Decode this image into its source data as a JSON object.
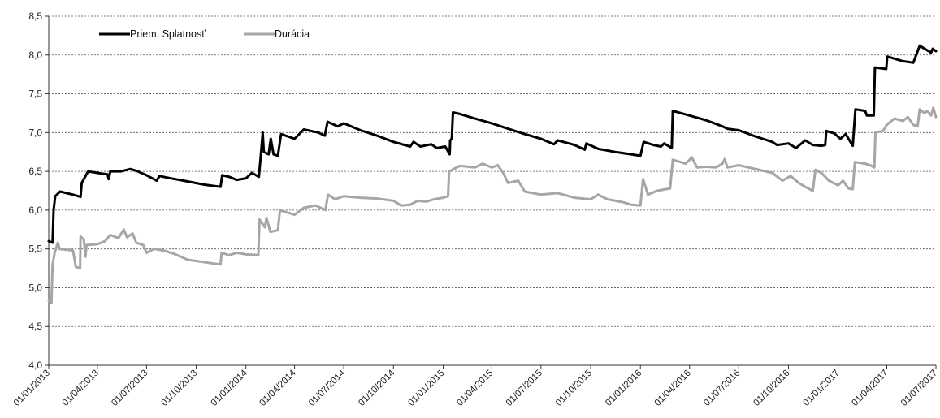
{
  "chart_data": {
    "type": "line",
    "title": "",
    "xlabel": "",
    "ylabel": "",
    "ylim": [
      4.0,
      8.5
    ],
    "y_ticks": [
      "4,0",
      "4,5",
      "5,0",
      "5,5",
      "6,0",
      "6,5",
      "7,0",
      "7,5",
      "8,0",
      "8,5"
    ],
    "x_ticks": [
      "01/01/2013",
      "01/04/2013",
      "01/07/2013",
      "01/10/2013",
      "01/01/2014",
      "01/04/2014",
      "01/07/2014",
      "01/10/2014",
      "01/01/2015",
      "01/04/2015",
      "01/07/2015",
      "01/10/2015",
      "01/01/2016",
      "01/04/2016",
      "01/07/2016",
      "01/10/2016",
      "01/01/2017",
      "01/04/2017",
      "01/07/2017"
    ],
    "xlim": [
      "2013-01-01",
      "2017-07-01"
    ],
    "grid": "horizontal dashed",
    "legend": "top-left",
    "series": [
      {
        "name": "Priem. Splatnosť",
        "color": "#000000",
        "points": [
          [
            "2013-01-01",
            5.6
          ],
          [
            "2013-01-08",
            5.58
          ],
          [
            "2013-01-10",
            6.0
          ],
          [
            "2013-01-13",
            6.18
          ],
          [
            "2013-01-22",
            6.24
          ],
          [
            "2013-02-15",
            6.2
          ],
          [
            "2013-03-01",
            6.17
          ],
          [
            "2013-03-03",
            6.35
          ],
          [
            "2013-03-15",
            6.5
          ],
          [
            "2013-04-01",
            6.48
          ],
          [
            "2013-04-20",
            6.46
          ],
          [
            "2013-04-22",
            6.4
          ],
          [
            "2013-04-25",
            6.5
          ],
          [
            "2013-05-15",
            6.5
          ],
          [
            "2013-06-01",
            6.53
          ],
          [
            "2013-06-15",
            6.5
          ],
          [
            "2013-07-01",
            6.45
          ],
          [
            "2013-07-20",
            6.38
          ],
          [
            "2013-07-25",
            6.44
          ],
          [
            "2013-08-15",
            6.41
          ],
          [
            "2013-09-15",
            6.37
          ],
          [
            "2013-10-15",
            6.33
          ],
          [
            "2013-11-15",
            6.3
          ],
          [
            "2013-11-18",
            6.45
          ],
          [
            "2013-12-01",
            6.43
          ],
          [
            "2013-12-15",
            6.39
          ],
          [
            "2014-01-01",
            6.41
          ],
          [
            "2014-01-12",
            6.48
          ],
          [
            "2014-01-25",
            6.43
          ],
          [
            "2014-01-29",
            6.75
          ],
          [
            "2014-02-01",
            7.0
          ],
          [
            "2014-02-03",
            6.75
          ],
          [
            "2014-02-12",
            6.72
          ],
          [
            "2014-02-16",
            6.92
          ],
          [
            "2014-02-21",
            6.72
          ],
          [
            "2014-03-01",
            6.7
          ],
          [
            "2014-03-07",
            6.98
          ],
          [
            "2014-04-01",
            6.92
          ],
          [
            "2014-04-18",
            7.04
          ],
          [
            "2014-05-15",
            7.0
          ],
          [
            "2014-05-27",
            6.96
          ],
          [
            "2014-06-01",
            7.14
          ],
          [
            "2014-06-20",
            7.08
          ],
          [
            "2014-07-01",
            7.12
          ],
          [
            "2014-08-01",
            7.03
          ],
          [
            "2014-09-01",
            6.96
          ],
          [
            "2014-10-01",
            6.88
          ],
          [
            "2014-11-01",
            6.82
          ],
          [
            "2014-11-07",
            6.88
          ],
          [
            "2014-11-20",
            6.82
          ],
          [
            "2014-12-10",
            6.85
          ],
          [
            "2014-12-20",
            6.8
          ],
          [
            "2015-01-05",
            6.82
          ],
          [
            "2015-01-13",
            6.72
          ],
          [
            "2015-01-14",
            6.9
          ],
          [
            "2015-01-17",
            6.92
          ],
          [
            "2015-01-19",
            7.26
          ],
          [
            "2015-02-01",
            7.24
          ],
          [
            "2015-03-01",
            7.18
          ],
          [
            "2015-04-01",
            7.12
          ],
          [
            "2015-05-01",
            7.05
          ],
          [
            "2015-06-01",
            6.98
          ],
          [
            "2015-07-01",
            6.92
          ],
          [
            "2015-07-25",
            6.85
          ],
          [
            "2015-08-01",
            6.9
          ],
          [
            "2015-09-01",
            6.84
          ],
          [
            "2015-09-20",
            6.78
          ],
          [
            "2015-09-23",
            6.86
          ],
          [
            "2015-10-15",
            6.79
          ],
          [
            "2015-11-15",
            6.75
          ],
          [
            "2015-12-15",
            6.72
          ],
          [
            "2016-01-01",
            6.7
          ],
          [
            "2016-01-07",
            6.88
          ],
          [
            "2016-01-25",
            6.84
          ],
          [
            "2016-02-08",
            6.82
          ],
          [
            "2016-02-14",
            6.86
          ],
          [
            "2016-02-28",
            6.8
          ],
          [
            "2016-03-01",
            7.28
          ],
          [
            "2016-04-01",
            7.22
          ],
          [
            "2016-05-01",
            7.16
          ],
          [
            "2016-06-01",
            7.08
          ],
          [
            "2016-06-10",
            7.05
          ],
          [
            "2016-07-01",
            7.03
          ],
          [
            "2016-08-01",
            6.95
          ],
          [
            "2016-09-01",
            6.88
          ],
          [
            "2016-09-10",
            6.84
          ],
          [
            "2016-10-01",
            6.86
          ],
          [
            "2016-10-15",
            6.8
          ],
          [
            "2016-11-01",
            6.9
          ],
          [
            "2016-11-15",
            6.84
          ],
          [
            "2016-12-01",
            6.83
          ],
          [
            "2016-12-08",
            6.84
          ],
          [
            "2016-12-10",
            7.02
          ],
          [
            "2016-12-25",
            6.99
          ],
          [
            "2017-01-05",
            6.92
          ],
          [
            "2017-01-15",
            6.98
          ],
          [
            "2017-01-28",
            6.83
          ],
          [
            "2017-02-02",
            7.3
          ],
          [
            "2017-02-20",
            7.28
          ],
          [
            "2017-02-23",
            7.22
          ],
          [
            "2017-03-08",
            7.22
          ],
          [
            "2017-03-10",
            7.84
          ],
          [
            "2017-03-31",
            7.82
          ],
          [
            "2017-04-02",
            7.98
          ],
          [
            "2017-05-01",
            7.92
          ],
          [
            "2017-05-20",
            7.9
          ],
          [
            "2017-06-01",
            8.12
          ],
          [
            "2017-06-22",
            8.03
          ],
          [
            "2017-06-25",
            8.08
          ],
          [
            "2017-07-01",
            8.05
          ]
        ]
      },
      {
        "name": "Durácia",
        "color": "#a6a6a6",
        "points": [
          [
            "2013-01-01",
            4.83
          ],
          [
            "2013-01-06",
            4.8
          ],
          [
            "2013-01-08",
            5.3
          ],
          [
            "2013-01-12",
            5.45
          ],
          [
            "2013-01-18",
            5.58
          ],
          [
            "2013-01-21",
            5.5
          ],
          [
            "2013-02-15",
            5.48
          ],
          [
            "2013-02-20",
            5.27
          ],
          [
            "2013-02-28",
            5.25
          ],
          [
            "2013-03-01",
            5.66
          ],
          [
            "2013-03-07",
            5.62
          ],
          [
            "2013-03-10",
            5.4
          ],
          [
            "2013-03-12",
            5.55
          ],
          [
            "2013-04-01",
            5.56
          ],
          [
            "2013-04-15",
            5.6
          ],
          [
            "2013-04-25",
            5.68
          ],
          [
            "2013-05-10",
            5.64
          ],
          [
            "2013-05-20",
            5.75
          ],
          [
            "2013-05-26",
            5.65
          ],
          [
            "2013-06-05",
            5.7
          ],
          [
            "2013-06-12",
            5.58
          ],
          [
            "2013-06-25",
            5.55
          ],
          [
            "2013-07-01",
            5.45
          ],
          [
            "2013-07-15",
            5.5
          ],
          [
            "2013-08-01",
            5.48
          ],
          [
            "2013-08-20",
            5.44
          ],
          [
            "2013-09-15",
            5.36
          ],
          [
            "2013-10-15",
            5.33
          ],
          [
            "2013-11-15",
            5.3
          ],
          [
            "2013-11-17",
            5.45
          ],
          [
            "2013-12-01",
            5.42
          ],
          [
            "2013-12-15",
            5.45
          ],
          [
            "2014-01-01",
            5.43
          ],
          [
            "2014-01-24",
            5.42
          ],
          [
            "2014-01-26",
            5.88
          ],
          [
            "2014-02-05",
            5.78
          ],
          [
            "2014-02-08",
            5.9
          ],
          [
            "2014-02-15",
            5.72
          ],
          [
            "2014-03-01",
            5.74
          ],
          [
            "2014-03-05",
            6.0
          ],
          [
            "2014-04-01",
            5.94
          ],
          [
            "2014-04-18",
            6.03
          ],
          [
            "2014-05-10",
            6.06
          ],
          [
            "2014-05-28",
            6.0
          ],
          [
            "2014-06-02",
            6.2
          ],
          [
            "2014-06-15",
            6.14
          ],
          [
            "2014-07-01",
            6.18
          ],
          [
            "2014-08-01",
            6.16
          ],
          [
            "2014-09-01",
            6.15
          ],
          [
            "2014-10-01",
            6.12
          ],
          [
            "2014-10-15",
            6.06
          ],
          [
            "2014-11-01",
            6.07
          ],
          [
            "2014-11-15",
            6.12
          ],
          [
            "2014-12-01",
            6.11
          ],
          [
            "2014-12-15",
            6.14
          ],
          [
            "2015-01-01",
            6.16
          ],
          [
            "2015-01-10",
            6.18
          ],
          [
            "2015-01-12",
            6.5
          ],
          [
            "2015-02-01",
            6.57
          ],
          [
            "2015-03-01",
            6.55
          ],
          [
            "2015-03-15",
            6.6
          ],
          [
            "2015-04-01",
            6.55
          ],
          [
            "2015-04-12",
            6.58
          ],
          [
            "2015-04-22",
            6.48
          ],
          [
            "2015-05-01",
            6.35
          ],
          [
            "2015-05-20",
            6.38
          ],
          [
            "2015-06-01",
            6.24
          ],
          [
            "2015-07-01",
            6.2
          ],
          [
            "2015-08-01",
            6.22
          ],
          [
            "2015-09-01",
            6.16
          ],
          [
            "2015-10-01",
            6.14
          ],
          [
            "2015-10-15",
            6.2
          ],
          [
            "2015-11-01",
            6.14
          ],
          [
            "2015-12-01",
            6.1
          ],
          [
            "2015-12-15",
            6.07
          ],
          [
            "2016-01-01",
            6.06
          ],
          [
            "2016-01-06",
            6.4
          ],
          [
            "2016-01-15",
            6.2
          ],
          [
            "2016-02-01",
            6.25
          ],
          [
            "2016-02-25",
            6.28
          ],
          [
            "2016-03-01",
            6.65
          ],
          [
            "2016-03-25",
            6.6
          ],
          [
            "2016-04-05",
            6.68
          ],
          [
            "2016-04-15",
            6.55
          ],
          [
            "2016-05-01",
            6.56
          ],
          [
            "2016-05-20",
            6.55
          ],
          [
            "2016-06-01",
            6.6
          ],
          [
            "2016-06-05",
            6.66
          ],
          [
            "2016-06-10",
            6.55
          ],
          [
            "2016-07-01",
            6.58
          ],
          [
            "2016-08-01",
            6.53
          ],
          [
            "2016-09-01",
            6.48
          ],
          [
            "2016-09-20",
            6.38
          ],
          [
            "2016-10-05",
            6.44
          ],
          [
            "2016-10-20",
            6.35
          ],
          [
            "2016-11-01",
            6.3
          ],
          [
            "2016-11-15",
            6.25
          ],
          [
            "2016-11-20",
            6.52
          ],
          [
            "2016-12-01",
            6.48
          ],
          [
            "2016-12-15",
            6.38
          ],
          [
            "2017-01-01",
            6.32
          ],
          [
            "2017-01-10",
            6.38
          ],
          [
            "2017-01-20",
            6.28
          ],
          [
            "2017-01-28",
            6.27
          ],
          [
            "2017-02-01",
            6.62
          ],
          [
            "2017-02-20",
            6.6
          ],
          [
            "2017-03-01",
            6.58
          ],
          [
            "2017-03-09",
            6.55
          ],
          [
            "2017-03-11",
            7.0
          ],
          [
            "2017-03-25",
            7.02
          ],
          [
            "2017-04-01",
            7.1
          ],
          [
            "2017-04-15",
            7.18
          ],
          [
            "2017-05-01",
            7.15
          ],
          [
            "2017-05-10",
            7.2
          ],
          [
            "2017-05-20",
            7.1
          ],
          [
            "2017-05-28",
            7.08
          ],
          [
            "2017-06-01",
            7.3
          ],
          [
            "2017-06-10",
            7.25
          ],
          [
            "2017-06-15",
            7.28
          ],
          [
            "2017-06-22",
            7.22
          ],
          [
            "2017-06-26",
            7.32
          ],
          [
            "2017-07-01",
            7.2
          ]
        ]
      }
    ]
  }
}
